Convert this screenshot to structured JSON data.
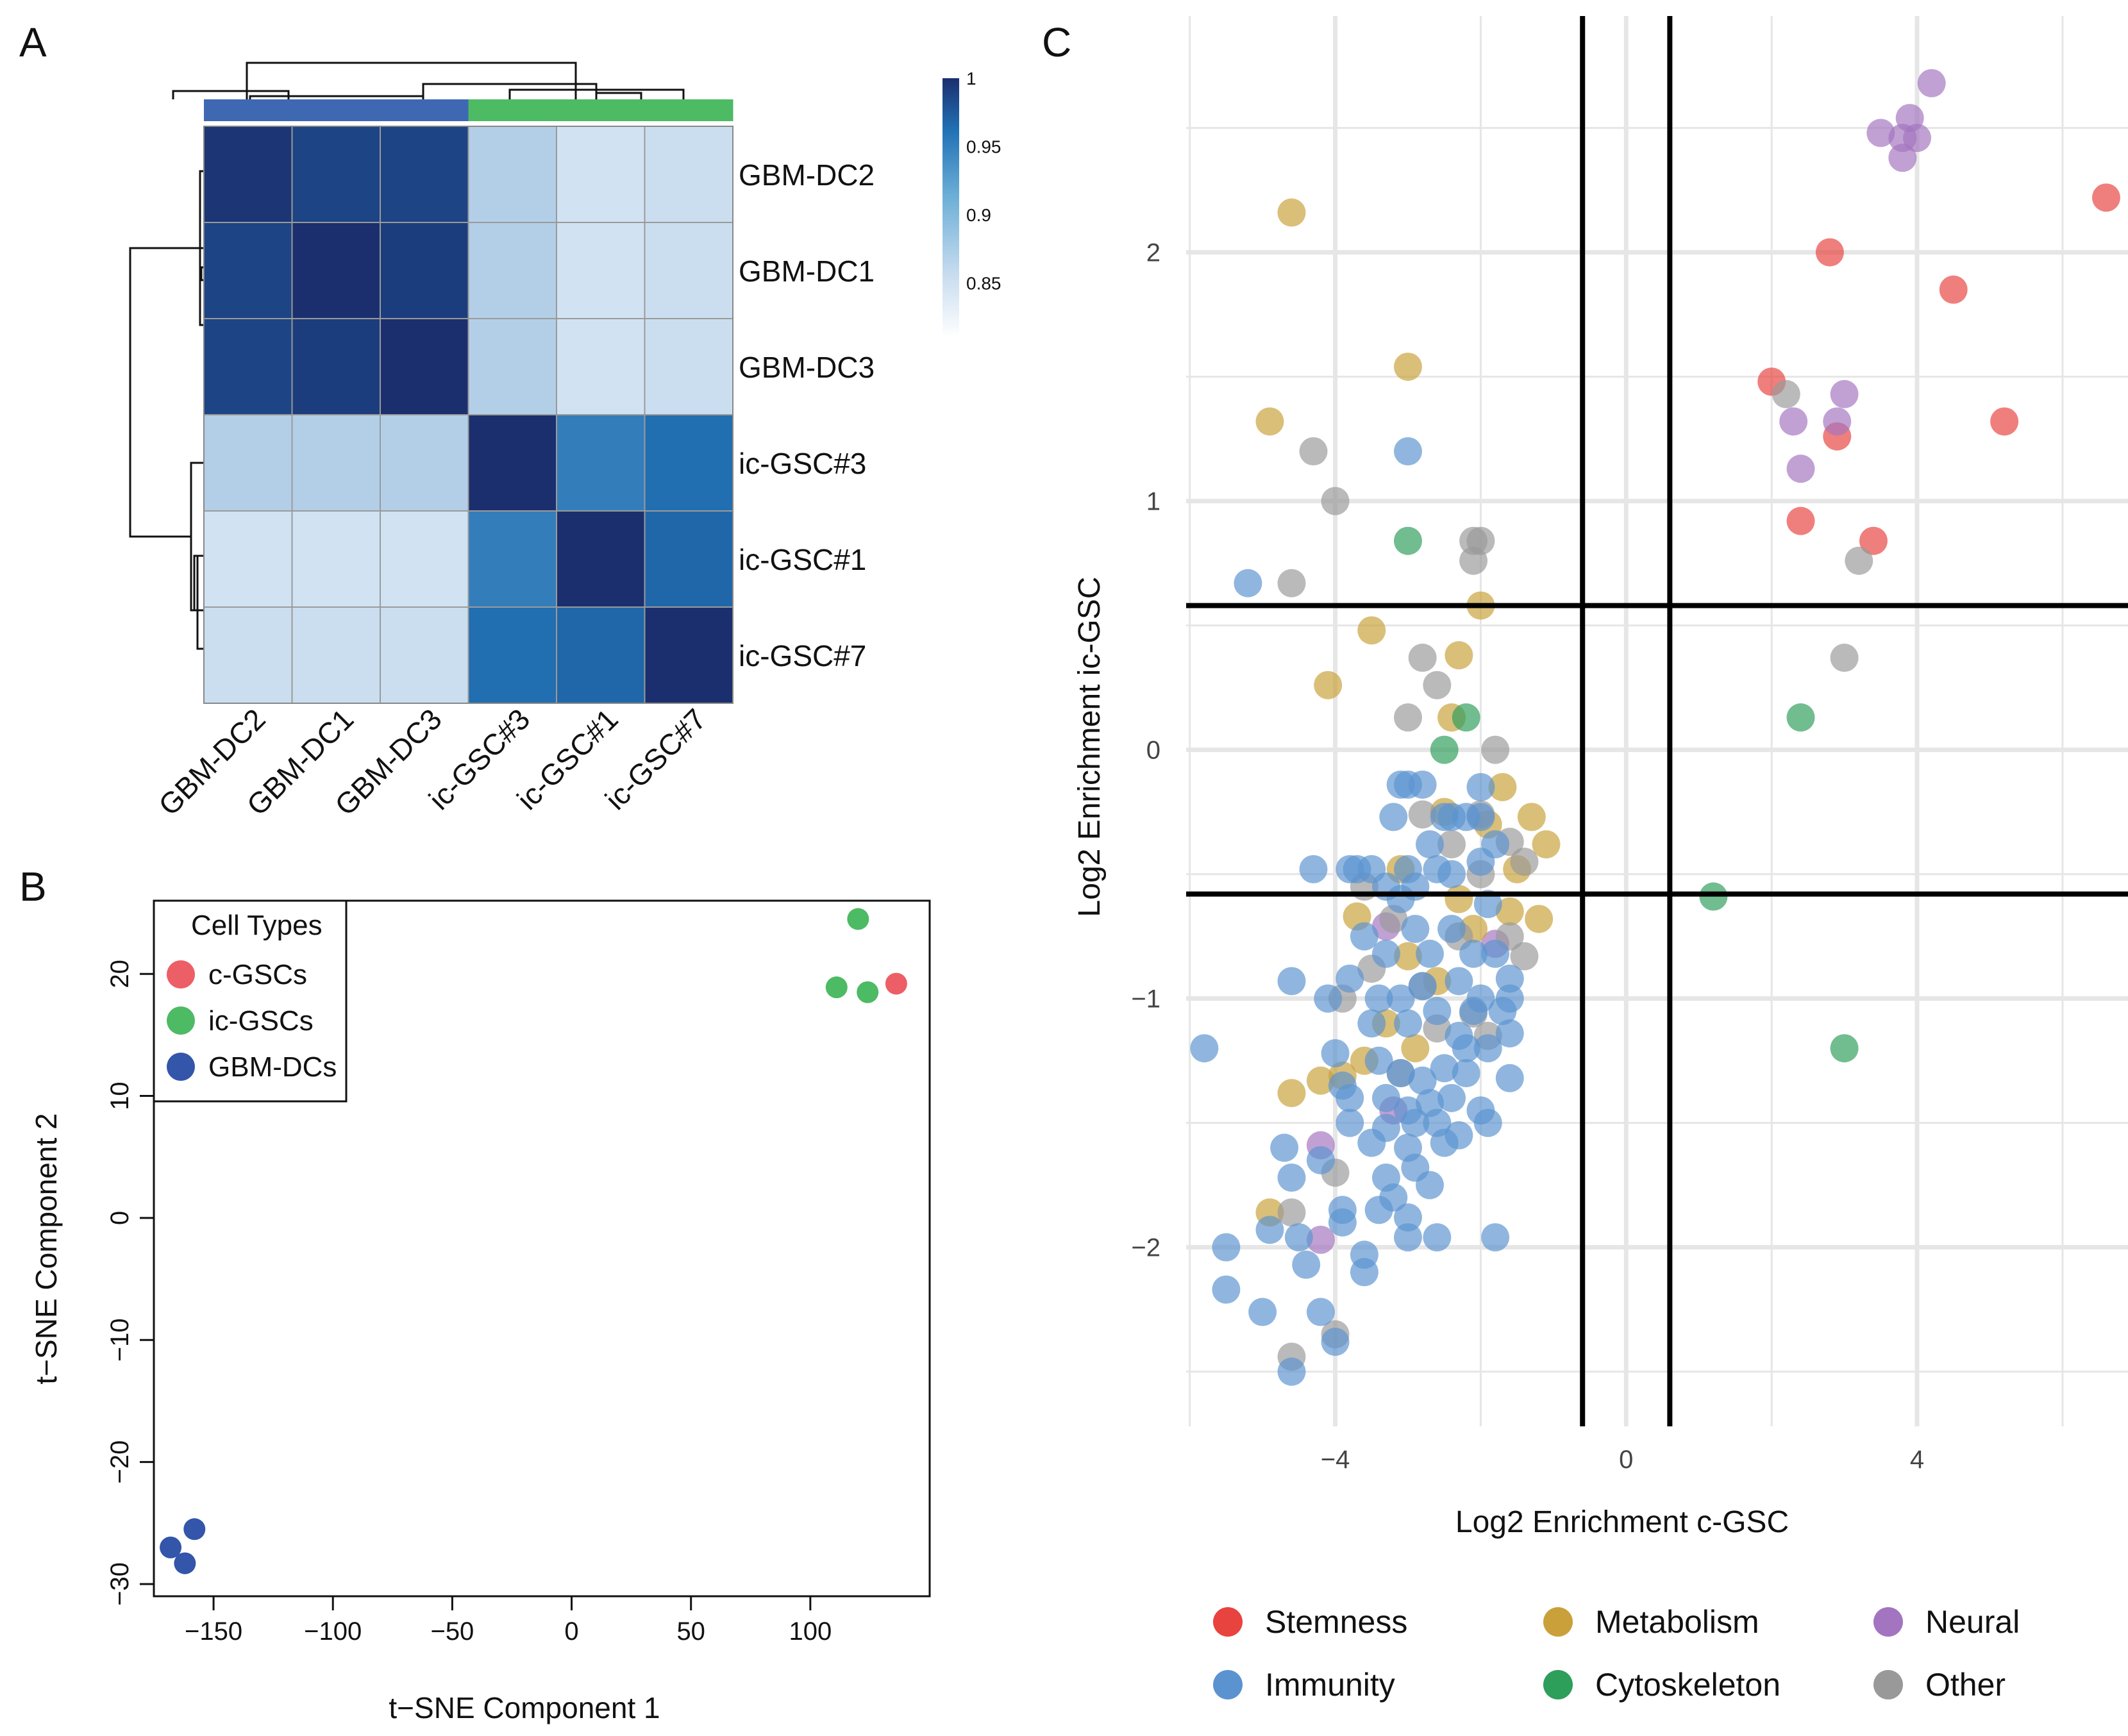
{
  "panel_labels": {
    "a": "A",
    "b": "B",
    "c": "C"
  },
  "colors": {
    "heat_low": "#f7fbff",
    "heat_mid": "#2171b5",
    "heat_high": "#1b2f6e",
    "group_dc": "#3f68b3",
    "group_ic": "#4dba64",
    "c_gsc": "#ec5f66",
    "ic_gsc": "#4dba64",
    "gbm_dc": "#3355aa",
    "stemness": "#e8433f",
    "immunity": "#5b93d0",
    "metabolism": "#c9a03a",
    "cytoskeleton": "#2e9e5b",
    "neural": "#a374c0",
    "other": "#999999"
  },
  "chart_data": [
    {
      "type": "heatmap",
      "panel": "A",
      "columns": [
        "GBM-DC2",
        "GBM-DC1",
        "GBM-DC3",
        "ic-GSC#3",
        "ic-GSC#1",
        "ic-GSC#7"
      ],
      "rows": [
        "GBM-DC2",
        "GBM-DC1",
        "GBM-DC3",
        "ic-GSC#3",
        "ic-GSC#1",
        "ic-GSC#7"
      ],
      "values": [
        [
          0.995,
          0.985,
          0.985,
          0.855,
          0.835,
          0.84
        ],
        [
          0.985,
          1.0,
          0.99,
          0.855,
          0.835,
          0.84
        ],
        [
          0.985,
          0.99,
          1.0,
          0.855,
          0.835,
          0.84
        ],
        [
          0.855,
          0.855,
          0.855,
          1.0,
          0.94,
          0.955
        ],
        [
          0.835,
          0.835,
          0.835,
          0.94,
          1.0,
          0.96
        ],
        [
          0.84,
          0.84,
          0.84,
          0.955,
          0.96,
          1.0
        ]
      ],
      "colorbar": {
        "min": 0.81,
        "max": 1.0,
        "ticks": [
          "1",
          "0.95",
          "0.9",
          "0.85"
        ]
      },
      "column_groups": [
        "GBM-DC",
        "GBM-DC",
        "GBM-DC",
        "ic-GSC",
        "ic-GSC",
        "ic-GSC"
      ]
    },
    {
      "type": "scatter",
      "panel": "B",
      "xlabel": "t−SNE Component 1",
      "ylabel": "t−SNE Component 2",
      "xlim": [
        -175,
        150
      ],
      "ylim": [
        -31,
        26
      ],
      "xticks": [
        -150,
        -100,
        -50,
        0,
        50,
        100
      ],
      "yticks": [
        20,
        10,
        0,
        -10,
        -20,
        -30
      ],
      "legend": {
        "title": "Cell Types",
        "position": "top-left",
        "entries": [
          "c-GSCs",
          "ic-GSCs",
          "GBM-DCs"
        ]
      },
      "series": [
        {
          "name": "c-GSCs",
          "points": [
            [
              136,
              19.2
            ]
          ]
        },
        {
          "name": "ic-GSCs",
          "points": [
            [
              120,
              24.5
            ],
            [
              111,
              18.9
            ],
            [
              124,
              18.5
            ]
          ]
        },
        {
          "name": "GBM-DCs",
          "points": [
            [
              -168,
              -27
            ],
            [
              -158,
              -25.5
            ],
            [
              -162,
              -28.3
            ]
          ]
        }
      ]
    },
    {
      "type": "scatter",
      "panel": "C",
      "xlabel": "Log2 Enrichment c-GSC",
      "ylabel": "Log2 Enrichment ic-GSC",
      "xlim": [
        -6.05,
        6.9
      ],
      "ylim": [
        -2.72,
        2.95
      ],
      "xticks": [
        -4,
        0,
        4
      ],
      "yticks": [
        2,
        1,
        0,
        -1,
        -2
      ],
      "threshold_lines": {
        "x": [
          -0.6,
          0.6
        ],
        "y": [
          0.58,
          -0.58
        ]
      },
      "legend": {
        "position": "bottom",
        "entries": [
          "Stemness",
          "Metabolism",
          "Neural",
          "Immunity",
          "Cytoskeleton",
          "Other"
        ]
      },
      "series": [
        {
          "name": "Stemness",
          "points": [
            [
              6.6,
              2.22
            ],
            [
              2.8,
              2.0
            ],
            [
              4.5,
              1.85
            ],
            [
              2.0,
              1.48
            ],
            [
              5.2,
              1.32
            ],
            [
              2.9,
              1.26
            ],
            [
              2.4,
              0.92
            ],
            [
              3.4,
              0.84
            ]
          ]
        },
        {
          "name": "Neural",
          "points": [
            [
              4.2,
              2.68
            ],
            [
              3.9,
              2.54
            ],
            [
              3.5,
              2.48
            ],
            [
              3.8,
              2.46
            ],
            [
              4.0,
              2.46
            ],
            [
              3.8,
              2.38
            ],
            [
              3.0,
              1.43
            ],
            [
              2.9,
              1.32
            ],
            [
              2.3,
              1.32
            ],
            [
              2.4,
              1.13
            ],
            [
              -1.8,
              -0.78
            ],
            [
              -3.2,
              -1.45
            ],
            [
              -4.2,
              -1.59
            ],
            [
              -4.2,
              -1.97
            ],
            [
              -3.3,
              -0.71
            ]
          ]
        },
        {
          "name": "Metabolism",
          "points": [
            [
              -4.6,
              2.16
            ],
            [
              -3.0,
              1.54
            ],
            [
              -4.9,
              1.32
            ],
            [
              -2.0,
              0.58
            ],
            [
              -3.5,
              0.48
            ],
            [
              -2.3,
              0.38
            ],
            [
              -4.1,
              0.26
            ],
            [
              -2.4,
              0.13
            ],
            [
              -1.7,
              -0.15
            ],
            [
              -1.3,
              -0.27
            ],
            [
              -1.1,
              -0.38
            ],
            [
              -1.5,
              -0.48
            ],
            [
              -3.1,
              -0.48
            ],
            [
              -1.6,
              -0.65
            ],
            [
              -1.2,
              -0.68
            ],
            [
              -2.3,
              -0.6
            ],
            [
              -3.7,
              -0.67
            ],
            [
              -2.1,
              -0.72
            ],
            [
              -3.0,
              -0.83
            ],
            [
              -2.6,
              -0.93
            ],
            [
              -3.3,
              -1.1
            ],
            [
              -2.9,
              -1.2
            ],
            [
              -4.2,
              -1.33
            ],
            [
              -3.9,
              -1.31
            ],
            [
              -4.6,
              -1.38
            ],
            [
              -3.6,
              -1.25
            ],
            [
              -4.9,
              -1.86
            ],
            [
              -2.5,
              -0.25
            ],
            [
              -1.9,
              -0.3
            ]
          ]
        },
        {
          "name": "Cytoskeleton",
          "points": [
            [
              -3.0,
              0.84
            ],
            [
              -2.2,
              0.13
            ],
            [
              -2.5,
              0.0
            ],
            [
              2.4,
              0.13
            ],
            [
              1.2,
              -0.59
            ],
            [
              3.0,
              -1.2
            ]
          ]
        },
        {
          "name": "Other",
          "points": [
            [
              -4.3,
              1.2
            ],
            [
              -4.0,
              1.0
            ],
            [
              -2.1,
              0.84
            ],
            [
              -2.0,
              0.84
            ],
            [
              -2.1,
              0.76
            ],
            [
              -4.6,
              0.67
            ],
            [
              -2.8,
              0.37
            ],
            [
              -2.6,
              0.26
            ],
            [
              -3.0,
              0.13
            ],
            [
              -1.8,
              0.0
            ],
            [
              -2.8,
              -0.26
            ],
            [
              -2.0,
              -0.26
            ],
            [
              -2.4,
              -0.38
            ],
            [
              -1.6,
              -0.37
            ],
            [
              -1.4,
              -0.45
            ],
            [
              -2.0,
              -0.5
            ],
            [
              -3.6,
              -0.55
            ],
            [
              -3.2,
              -0.68
            ],
            [
              -2.3,
              -0.75
            ],
            [
              -1.4,
              -0.83
            ],
            [
              -1.6,
              -0.75
            ],
            [
              -3.9,
              -1.0
            ],
            [
              -2.1,
              -1.06
            ],
            [
              -2.6,
              -1.12
            ],
            [
              -4.0,
              -1.7
            ],
            [
              -4.6,
              -1.86
            ],
            [
              -4.0,
              -2.35
            ],
            [
              -4.6,
              -2.44
            ],
            [
              3.2,
              0.76
            ],
            [
              3.0,
              0.37
            ],
            [
              2.2,
              1.43
            ],
            [
              -3.5,
              -0.88
            ],
            [
              -2.8,
              -0.95
            ],
            [
              -1.9,
              -1.15
            ],
            [
              -3.1,
              -1.3
            ]
          ]
        },
        {
          "name": "Immunity",
          "points": [
            [
              -5.8,
              -1.2
            ],
            [
              -3.0,
              1.2
            ],
            [
              -5.2,
              0.67
            ],
            [
              -4.3,
              -0.48
            ],
            [
              -3.8,
              -0.48
            ],
            [
              -3.7,
              -0.48
            ],
            [
              -3.5,
              -0.48
            ],
            [
              -3.0,
              -0.48
            ],
            [
              -2.9,
              -0.55
            ],
            [
              -2.6,
              -0.48
            ],
            [
              -2.4,
              -0.5
            ],
            [
              -2.0,
              -0.45
            ],
            [
              -1.9,
              -0.62
            ],
            [
              -3.1,
              -0.14
            ],
            [
              -3.0,
              -0.14
            ],
            [
              -2.5,
              -0.27
            ],
            [
              -2.4,
              -0.27
            ],
            [
              -2.2,
              -0.27
            ],
            [
              -2.0,
              -0.27
            ],
            [
              -3.2,
              -0.27
            ],
            [
              -2.8,
              -0.14
            ],
            [
              -1.8,
              -0.38
            ],
            [
              -2.7,
              -0.38
            ],
            [
              -3.3,
              -0.55
            ],
            [
              -3.6,
              -0.75
            ],
            [
              -3.3,
              -0.82
            ],
            [
              -2.9,
              -0.72
            ],
            [
              -2.7,
              -0.82
            ],
            [
              -2.4,
              -0.72
            ],
            [
              -2.1,
              -0.82
            ],
            [
              -1.8,
              -0.82
            ],
            [
              -1.6,
              -0.92
            ],
            [
              -4.6,
              -0.93
            ],
            [
              -3.8,
              -0.92
            ],
            [
              -4.1,
              -1.0
            ],
            [
              -3.4,
              -1.0
            ],
            [
              -3.1,
              -1.0
            ],
            [
              -2.8,
              -0.95
            ],
            [
              -2.3,
              -0.93
            ],
            [
              -2.0,
              -1.0
            ],
            [
              -1.6,
              -1.0
            ],
            [
              -1.6,
              -1.14
            ],
            [
              -3.5,
              -1.1
            ],
            [
              -3.0,
              -1.1
            ],
            [
              -2.6,
              -1.05
            ],
            [
              -2.3,
              -1.15
            ],
            [
              -1.9,
              -1.2
            ],
            [
              -4.0,
              -1.22
            ],
            [
              -3.4,
              -1.25
            ],
            [
              -3.1,
              -1.3
            ],
            [
              -2.8,
              -1.33
            ],
            [
              -2.5,
              -1.28
            ],
            [
              -2.2,
              -1.3
            ],
            [
              -1.6,
              -1.32
            ],
            [
              -3.9,
              -1.35
            ],
            [
              -3.8,
              -1.4
            ],
            [
              -3.3,
              -1.4
            ],
            [
              -3.0,
              -1.45
            ],
            [
              -2.7,
              -1.42
            ],
            [
              -2.4,
              -1.4
            ],
            [
              -2.0,
              -1.45
            ],
            [
              -3.8,
              -1.5
            ],
            [
              -3.3,
              -1.52
            ],
            [
              -2.9,
              -1.5
            ],
            [
              -2.6,
              -1.5
            ],
            [
              -2.3,
              -1.55
            ],
            [
              -1.9,
              -1.5
            ],
            [
              -4.7,
              -1.6
            ],
            [
              -4.2,
              -1.65
            ],
            [
              -3.0,
              -1.6
            ],
            [
              -2.5,
              -1.58
            ],
            [
              -4.6,
              -1.72
            ],
            [
              -3.3,
              -1.72
            ],
            [
              -3.2,
              -1.8
            ],
            [
              -2.7,
              -1.75
            ],
            [
              -3.9,
              -1.85
            ],
            [
              -3.4,
              -1.85
            ],
            [
              -3.0,
              -1.88
            ],
            [
              -3.9,
              -1.9
            ],
            [
              -4.9,
              -1.93
            ],
            [
              -4.5,
              -1.96
            ],
            [
              -3.0,
              -1.96
            ],
            [
              -2.6,
              -1.96
            ],
            [
              -1.8,
              -1.96
            ],
            [
              -5.5,
              -2.0
            ],
            [
              -4.4,
              -2.07
            ],
            [
              -3.6,
              -2.03
            ],
            [
              -5.5,
              -2.17
            ],
            [
              -3.6,
              -2.1
            ],
            [
              -5.0,
              -2.26
            ],
            [
              -4.2,
              -2.26
            ],
            [
              -4.0,
              -2.38
            ],
            [
              -4.6,
              -2.5
            ],
            [
              -2.1,
              -1.05
            ],
            [
              -3.5,
              -1.58
            ],
            [
              -2.9,
              -1.68
            ],
            [
              -3.1,
              -0.6
            ],
            [
              -2.0,
              -0.15
            ],
            [
              -2.2,
              -1.2
            ],
            [
              -1.7,
              -1.05
            ]
          ]
        }
      ]
    }
  ]
}
